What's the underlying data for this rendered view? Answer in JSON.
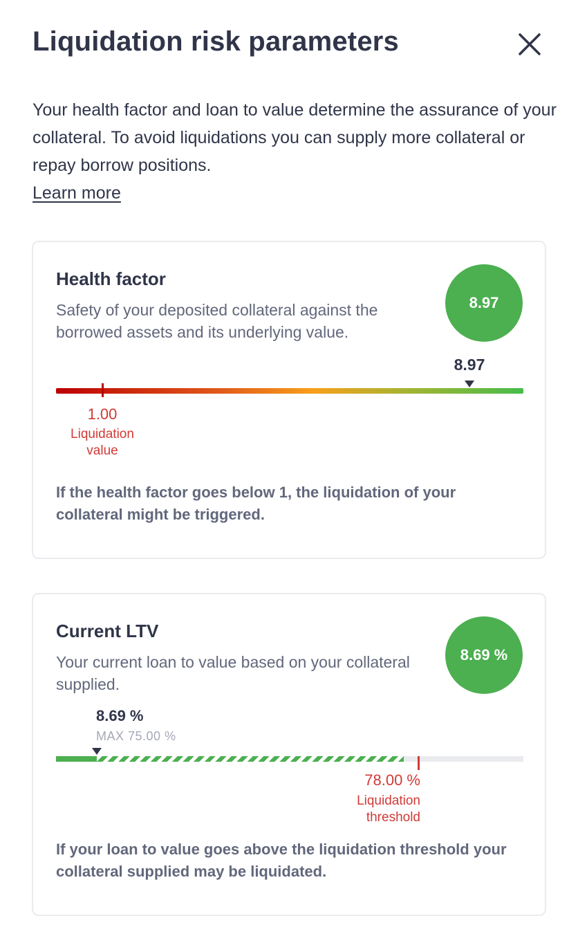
{
  "header": {
    "title": "Liquidation risk parameters",
    "close_icon": "close-icon"
  },
  "intro": {
    "text": "Your health factor and loan to value determine the assurance of your collateral. To avoid liquidations you can supply more collateral or repay borrow positions.",
    "learn_more": "Learn more"
  },
  "health_factor": {
    "title": "Health factor",
    "description": "Safety of your deposited collateral against the borrowed assets and its underlying value.",
    "badge_value": "8.97",
    "current_value": "8.97",
    "liquidation_value": "1.00",
    "liquidation_label": "Liquidation value",
    "footer": "If the health factor goes below 1, the liquidation of your collateral might be triggered.",
    "colors": {
      "badge": "#4caf50",
      "danger": "#d13a36"
    }
  },
  "ltv": {
    "title": "Current LTV",
    "description": "Your current loan to value based on your collateral supplied.",
    "badge_value": "8.69 %",
    "current_value": "8.69 %",
    "max_label": "MAX 75.00 %",
    "threshold_value": "78.00 %",
    "threshold_label": "Liquidation threshold",
    "footer": "If your loan to value goes above the liquidation threshold your collateral supplied may be liquidated.",
    "current_fraction": 0.0869,
    "max_fraction": 0.75,
    "threshold_fraction": 0.78
  }
}
